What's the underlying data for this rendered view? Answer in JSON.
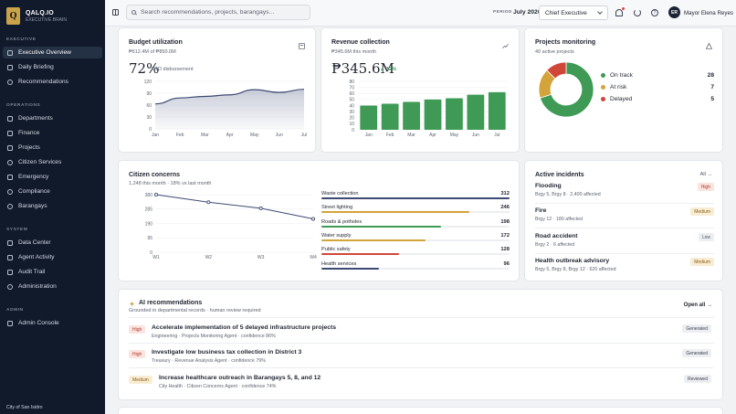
{
  "sidebar": {
    "logo_letter": "Q",
    "brand": "QALQ.IO",
    "brand_sub": "EXECUTIVE BRAIN",
    "sections": [
      {
        "label": "EXECUTIVE",
        "items": [
          {
            "label": "Executive Overview",
            "icon": "grid-icon",
            "active": true
          },
          {
            "label": "Daily Briefing",
            "icon": "document-icon"
          },
          {
            "label": "Recommendations",
            "icon": "lightbulb-icon"
          }
        ]
      },
      {
        "label": "OPERATIONS",
        "items": [
          {
            "label": "Departments",
            "icon": "building-icon"
          },
          {
            "label": "Finance",
            "icon": "wallet-icon"
          },
          {
            "label": "Projects",
            "icon": "folder-icon"
          },
          {
            "label": "Citizen Services",
            "icon": "people-icon"
          },
          {
            "label": "Emergency",
            "icon": "shield-icon"
          },
          {
            "label": "Compliance",
            "icon": "check-icon"
          },
          {
            "label": "Barangays",
            "icon": "map-pin-icon"
          }
        ]
      },
      {
        "label": "SYSTEM",
        "items": [
          {
            "label": "Data Center",
            "icon": "database-icon"
          },
          {
            "label": "Agent Activity",
            "icon": "activity-icon"
          },
          {
            "label": "Audit Trail",
            "icon": "list-icon"
          },
          {
            "label": "Administration",
            "icon": "gear-icon"
          }
        ]
      },
      {
        "label": "ADMIN",
        "items": [
          {
            "label": "Admin Console",
            "icon": "shield-icon"
          }
        ]
      }
    ],
    "footer": "City of San Isidro"
  },
  "topbar": {
    "search_placeholder": "Search recommendations, projects, barangays...",
    "period_label": "PERIOD",
    "period_value": "July 2026",
    "role": "Chief Executive",
    "avatar_initials": "ER",
    "user_name": "Mayor Elena Reyes",
    "help_glyph": "?"
  },
  "budget": {
    "title": "Budget utilization",
    "sub": "₱612.4M of ₱850.0M",
    "pct": "72%",
    "note": "YTD disbursement",
    "chart_data": {
      "type": "area",
      "categories": [
        "Jan",
        "Feb",
        "Mar",
        "Apr",
        "May",
        "Jun",
        "Jul"
      ],
      "values": [
        63,
        78,
        82,
        86,
        99,
        92,
        100
      ],
      "ylim": [
        0,
        120
      ],
      "yticks": [
        0,
        30,
        60,
        90,
        120
      ],
      "color": "#3d4a73"
    }
  },
  "revenue": {
    "title": "Revenue collection",
    "sub": "₱345.6M this month",
    "amount": "₱345.6M",
    "delta": "▲ 12%",
    "chart_data": {
      "type": "bar",
      "categories": [
        "Jan",
        "Feb",
        "Mar",
        "Apr",
        "May",
        "Jun",
        "Jul"
      ],
      "values": [
        40,
        43,
        46,
        50,
        52,
        58,
        62
      ],
      "ylim": [
        0,
        80
      ],
      "yticks": [
        0,
        10,
        20,
        30,
        40,
        50,
        60,
        70,
        80
      ],
      "color": "#3e9a55"
    }
  },
  "projects": {
    "title": "Projects monitoring",
    "sub": "40 active projects",
    "chart_data": {
      "type": "pie",
      "slices": [
        {
          "label": "On track",
          "value": 28,
          "color": "#3e9a55"
        },
        {
          "label": "At risk",
          "value": 7,
          "color": "#d2a43a"
        },
        {
          "label": "Delayed",
          "value": 5,
          "color": "#d0473a"
        }
      ]
    }
  },
  "concerns": {
    "title": "Citizen concerns",
    "sub": "1,248 this month · 18% vs last month",
    "chart_data": {
      "type": "line",
      "categories": [
        "W1",
        "W2",
        "W3",
        "W4"
      ],
      "values": [
        380,
        330,
        290,
        220
      ],
      "ylim": [
        0,
        380
      ],
      "yticks": [
        0,
        95,
        190,
        285,
        380
      ],
      "color": "#3d4a73"
    },
    "categories": [
      {
        "name": "Waste collection",
        "value": 312,
        "color": "#3d4a73"
      },
      {
        "name": "Street lighting",
        "value": 246,
        "color": "#d2a43a"
      },
      {
        "name": "Roads & potholes",
        "value": 198,
        "color": "#3e9a55"
      },
      {
        "name": "Water supply",
        "value": 172,
        "color": "#d2a43a"
      },
      {
        "name": "Public safety",
        "value": 128,
        "color": "#d0473a"
      },
      {
        "name": "Health services",
        "value": 96,
        "color": "#3d4a73"
      }
    ]
  },
  "incidents": {
    "title": "Active incidents",
    "all_label": "All →",
    "items": [
      {
        "title": "Flooding",
        "sub": "Brgy 5, Brgy 8 · 2,400 affected",
        "severity": "High",
        "sev_class": "sev-high"
      },
      {
        "title": "Fire",
        "sub": "Brgy 12 · 180 affected",
        "severity": "Medium",
        "sev_class": "sev-medium"
      },
      {
        "title": "Road accident",
        "sub": "Brgy 2 · 6 affected",
        "severity": "Low",
        "sev_class": "sev-low"
      },
      {
        "title": "Health outbreak advisory",
        "sub": "Brgy 5, Brgy 8, Brgy 12 · 620 affected",
        "severity": "Medium",
        "sev_class": "sev-medium"
      }
    ]
  },
  "ai": {
    "title": "AI recommendations",
    "sub": "Grounded in departmental records · human review required",
    "open_all": "Open all →",
    "items": [
      {
        "priority": "High",
        "prio_class": "prio-high",
        "title": "Accelerate implementation of 5 delayed infrastructure projects",
        "sub": "Engineering · Projects Monitoring Agent · confidence 86%",
        "status": "Generated"
      },
      {
        "priority": "High",
        "prio_class": "prio-high",
        "title": "Investigate low business tax collection in District 3",
        "sub": "Treasury · Revenue Analysis Agent · confidence 79%",
        "status": "Generated"
      },
      {
        "priority": "Medium",
        "prio_class": "prio-medium",
        "title": "Increase healthcare outreach in Barangays 5, 8, and 12",
        "sub": "City Health · Citizen Concerns Agent · confidence 74%",
        "status": "Reviewed"
      }
    ]
  }
}
